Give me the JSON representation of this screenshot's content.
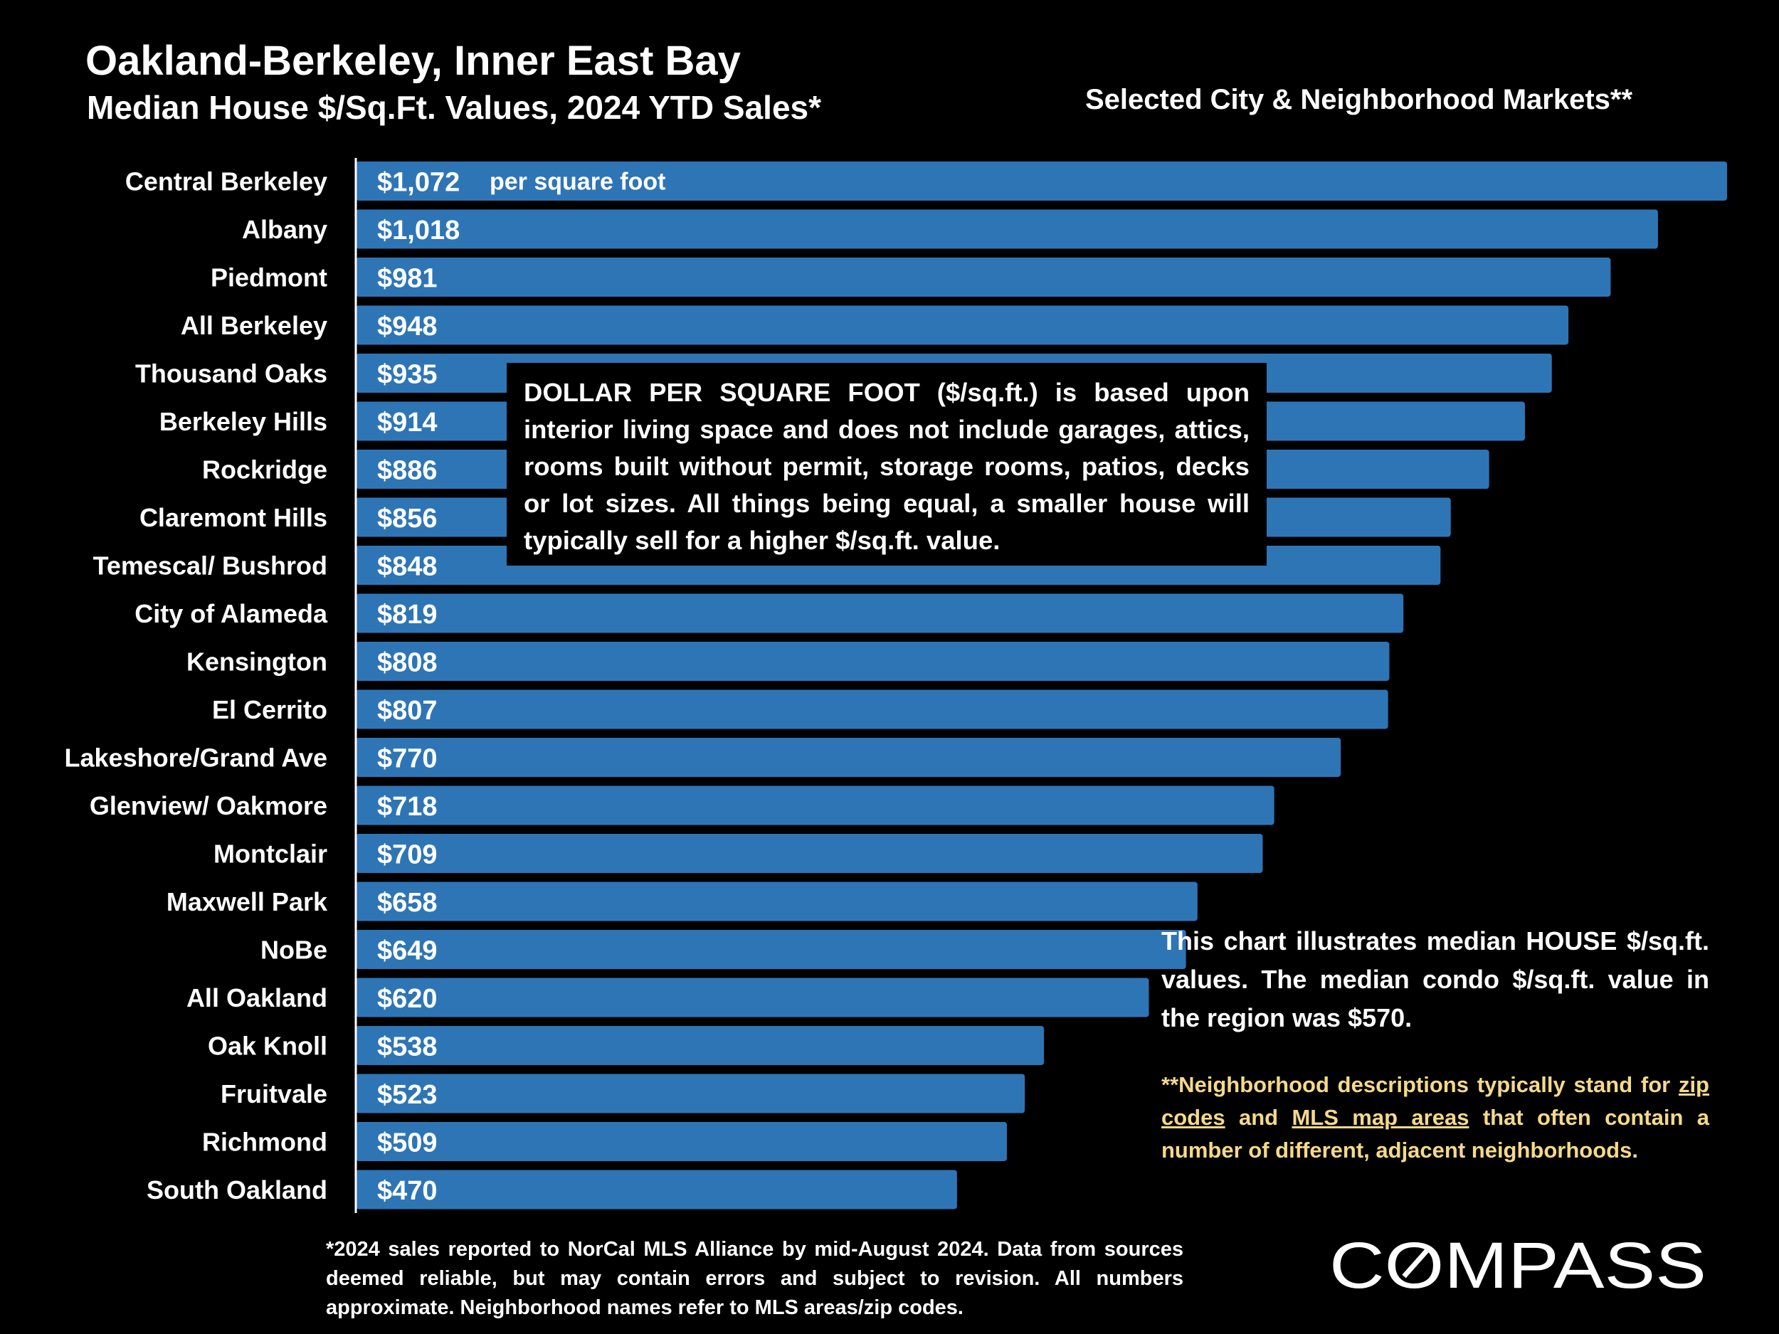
{
  "header": {
    "title": "Oakland-Berkeley, Inner East Bay",
    "subtitle": "Median House $/Sq.Ft. Values, 2024 YTD Sales*",
    "right_heading": "Selected City & Neighborhood Markets**"
  },
  "chart_data": {
    "type": "bar",
    "orientation": "horizontal",
    "categories": [
      "Central Berkeley",
      "Albany",
      "Piedmont",
      "All Berkeley",
      "Thousand Oaks",
      "Berkeley Hills",
      "Rockridge",
      "Claremont Hills",
      "Temescal/ Bushrod",
      "City of Alameda",
      "Kensington",
      "El Cerrito",
      "Lakeshore/Grand Ave",
      "Glenview/ Oakmore",
      "Montclair",
      "Maxwell Park",
      "NoBe",
      "All Oakland",
      "Oak Knoll",
      "Fruitvale",
      "Richmond",
      "South Oakland"
    ],
    "values": [
      1072,
      1018,
      981,
      948,
      935,
      914,
      886,
      856,
      848,
      819,
      808,
      807,
      770,
      718,
      709,
      658,
      649,
      620,
      538,
      523,
      509,
      470
    ],
    "value_labels": [
      "$1,072",
      "$1,018",
      "$981",
      "$948",
      "$935",
      "$914",
      "$886",
      "$856",
      "$848",
      "$819",
      "$808",
      "$807",
      "$770",
      "$718",
      "$709",
      "$658",
      "$649",
      "$620",
      "$538",
      "$523",
      "$509",
      "$470"
    ],
    "first_bar_note": "per square foot",
    "bar_color": "#2e75b6",
    "title": "Oakland-Berkeley, Inner East Bay",
    "subtitle": "Median House $/Sq.Ft. Values, 2024 YTD Sales*",
    "xlabel": "",
    "ylabel": "",
    "grid": false,
    "legend": "none"
  },
  "callouts": {
    "definition": "DOLLAR PER SQUARE FOOT ($/sq.ft.) is based upon interior living space and does not include garages, attics, rooms built without permit, storage rooms, patios, decks or lot sizes. All things being equal, a smaller house will typically sell for a higher $/sq.ft. value.",
    "house_note": "This chart illustrates median HOUSE $/sq.ft. values. The median condo $/sq.ft. value in the region was $570.",
    "region_note": {
      "part1": "**Neighborhood descriptions typically stand for ",
      "link1": "zip codes",
      "part2": " and ",
      "link2": "MLS map areas",
      "part3": " that often contain a number of different, adjacent neighborhoods.",
      "color": "#f5d98a"
    }
  },
  "footnote": "*2024 sales reported to NorCal MLS Alliance by mid-August 2024. Data from sources deemed reliable, but may contain errors and subject to revision. All numbers approximate. Neighborhood names refer to MLS areas/zip codes.",
  "logo": {
    "text": "COMPASS"
  }
}
